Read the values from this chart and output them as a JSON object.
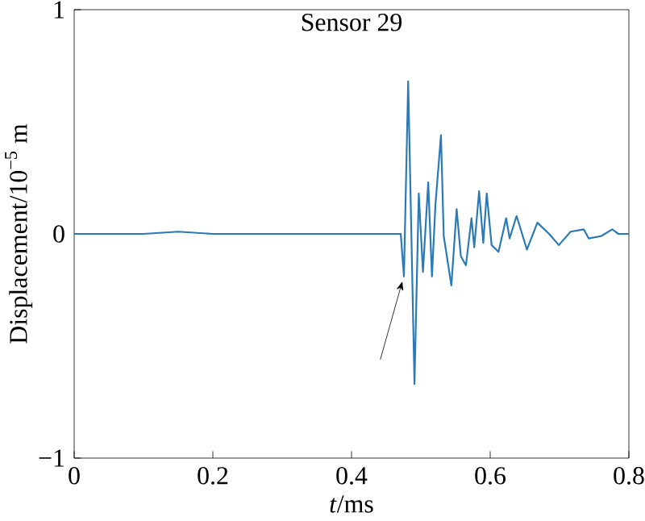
{
  "chart_data": {
    "type": "line",
    "title": "Sensor 29",
    "xlabel": "*t*/ms",
    "ylabel": "Displacement/10$^{−5}$ m",
    "xlim": [
      0,
      0.8
    ],
    "ylim": [
      -1,
      1
    ],
    "xticks": [
      0,
      0.2,
      0.4,
      0.6,
      0.8
    ],
    "yticks": [
      {
        "value": -1,
        "label": "−1"
      },
      0,
      1
    ],
    "grid": false,
    "marker": "none",
    "line_style": "solid",
    "series": [
      {
        "color": "#2a7ab8",
        "x": [
          0,
          0.05,
          0.1,
          0.15,
          0.2,
          0.25,
          0.3,
          0.35,
          0.4,
          0.45,
          0.471,
          0.4756,
          0.4817,
          0.4908,
          0.497,
          0.503,
          0.5106,
          0.516,
          0.521,
          0.529,
          0.533,
          0.544,
          0.5516,
          0.5577,
          0.565,
          0.573,
          0.577,
          0.584,
          0.59,
          0.595,
          0.602,
          0.612,
          0.623,
          0.628,
          0.638,
          0.653,
          0.668,
          0.685,
          0.699,
          0.716,
          0.735,
          0.742,
          0.76,
          0.776,
          0.785,
          0.8
        ],
        "values": [
          0,
          0,
          0,
          0.01,
          0,
          0,
          0,
          0,
          0,
          0,
          0,
          -0.19,
          0.68,
          -0.67,
          0.18,
          -0.17,
          0.23,
          -0.19,
          0.13,
          0.44,
          -0.01,
          -0.23,
          0.11,
          -0.1,
          -0.14,
          0.07,
          -0.06,
          0.19,
          -0.04,
          0.18,
          -0.05,
          -0.08,
          0.07,
          -0.02,
          0.08,
          -0.07,
          0.05,
          0,
          -0.05,
          0.01,
          0.02,
          -0.02,
          -0.01,
          0.02,
          0,
          0
        ]
      }
    ]
  }
}
